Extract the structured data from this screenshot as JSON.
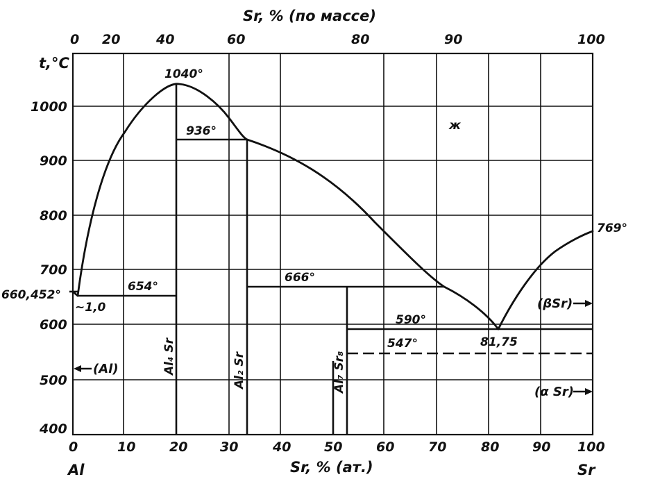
{
  "chart_data": {
    "type": "phase-diagram",
    "top_axis": {
      "title": "Sr, % (по массе)",
      "ticks": [
        "0",
        "20",
        "40",
        "60",
        "80",
        "90",
        "100"
      ]
    },
    "bottom_axis": {
      "title": "Sr, % (ат.)",
      "ticks": [
        0,
        10,
        20,
        30,
        40,
        50,
        60,
        70,
        80,
        90,
        100
      ],
      "left_element": "Al",
      "right_element": "Sr"
    },
    "y_axis": {
      "title": "t,°C",
      "ticks": [
        400,
        500,
        600,
        700,
        800,
        900,
        1000
      ],
      "range": [
        400,
        1080
      ]
    },
    "liquidus": [
      {
        "x": 0,
        "t": 660.452
      },
      {
        "x": 1.0,
        "t": 654
      },
      {
        "x": 5,
        "t": 860
      },
      {
        "x": 10,
        "t": 960
      },
      {
        "x": 15,
        "t": 1020
      },
      {
        "x": 20,
        "t": 1040
      },
      {
        "x": 25,
        "t": 1020
      },
      {
        "x": 30,
        "t": 975
      },
      {
        "x": 33.3,
        "t": 936
      },
      {
        "x": 40,
        "t": 905
      },
      {
        "x": 50,
        "t": 850
      },
      {
        "x": 60,
        "t": 780
      },
      {
        "x": 71.5,
        "t": 666
      },
      {
        "x": 77,
        "t": 635
      },
      {
        "x": 81.75,
        "t": 590
      },
      {
        "x": 86,
        "t": 660
      },
      {
        "x": 90,
        "t": 700
      },
      {
        "x": 95,
        "t": 740
      },
      {
        "x": 100,
        "t": 769
      }
    ],
    "compounds": [
      {
        "label": "Al4 Sr",
        "x": 20,
        "melts_at": 1040
      },
      {
        "label": "Al2 Sr",
        "x": 33.3,
        "forms_at": 936
      },
      {
        "label": "Al7 Sr8",
        "x": 53.3,
        "forms_at": 666
      }
    ],
    "horizontals": [
      {
        "t": 654,
        "x_from": 1.0,
        "x_to": 20
      },
      {
        "t": 936,
        "x_from": 20,
        "x_to": 33.3
      },
      {
        "t": 666,
        "x_from": 33.3,
        "x_to": 71.5
      },
      {
        "t": 590,
        "x_from": 53.3,
        "x_to": 100
      },
      {
        "t": 547,
        "x_from": 53.3,
        "x_to": 100,
        "dashed": true
      }
    ],
    "labels": {
      "al_melting": "660,452°",
      "eutectic_comp": "~1,0",
      "t654": "654°",
      "t1040": "1040°",
      "t936": "936°",
      "t666": "666°",
      "t590": "590°",
      "t547": "547°",
      "eutectic_sr": "81,75",
      "sr_melting": "769°",
      "liquid": "ж",
      "al_phase": "(Al)",
      "beta_sr": "(βSr)",
      "alpha_sr": "(α Sr)",
      "al4sr": "Al₄ Sr",
      "al2sr": "Al₂ Sr",
      "al7sr8": "Al₇ Sr₈"
    }
  }
}
